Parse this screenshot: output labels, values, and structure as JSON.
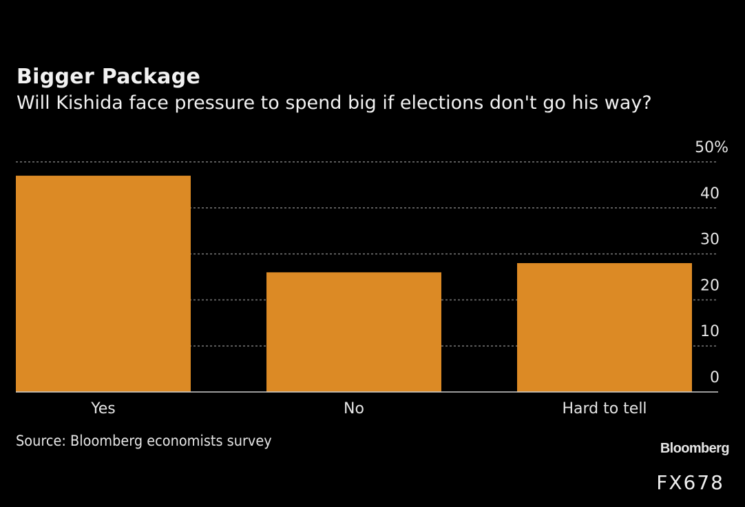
{
  "header": {
    "title": "Bigger Package",
    "subtitle": "Will Kishida face pressure to spend big if elections don't go his way?"
  },
  "footer": {
    "source": "Source: Bloomberg economists survey",
    "logo": "Bloomberg",
    "code": "FX678"
  },
  "colors": {
    "background": "#000000",
    "bar": "#dc8a25",
    "grid": "#7a7a7a",
    "text": "#e6e6e6"
  },
  "chart_data": {
    "type": "bar",
    "title": "Bigger Package",
    "subtitle": "Will Kishida face pressure to spend big if elections don't go his way?",
    "categories": [
      "Yes",
      "No",
      "Hard to tell"
    ],
    "values": [
      47,
      26,
      28
    ],
    "xlabel": "",
    "ylabel": "",
    "ylim": [
      0,
      50
    ],
    "yticks": [
      0,
      10,
      20,
      30,
      40,
      50
    ],
    "ytick_labels": [
      "0",
      "10",
      "20",
      "30",
      "40",
      "50%"
    ],
    "y_axis_side": "right",
    "grid": true,
    "grid_style": "dashed",
    "unit": "%",
    "source": "Source: Bloomberg economists survey"
  }
}
